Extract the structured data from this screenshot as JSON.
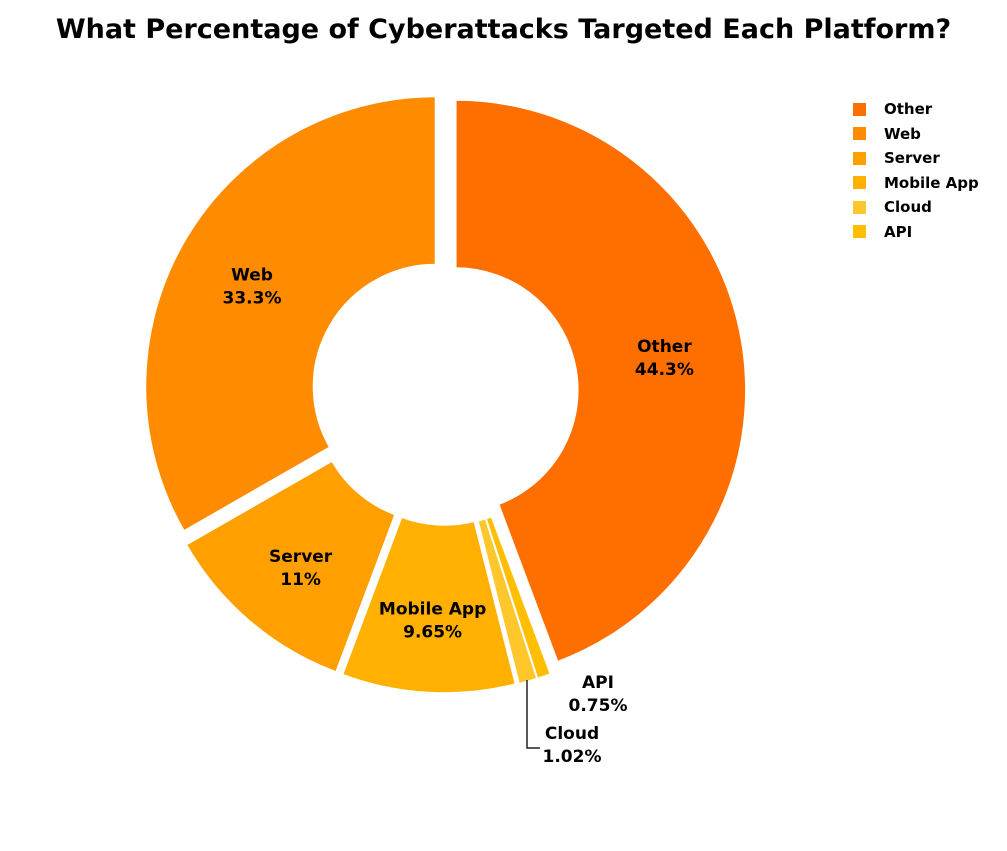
{
  "chart_data": {
    "type": "pie",
    "title": "What Percentage of Cyberattacks Targeted Each Platform?",
    "donut": true,
    "legend_position": "top-right",
    "slices": [
      {
        "label": "Other",
        "value": 44.3,
        "value_label": "44.3%",
        "color": "#FF6F00"
      },
      {
        "label": "API",
        "value": 0.75,
        "value_label": "0.75%",
        "color": "#FFBF00"
      },
      {
        "label": "Cloud",
        "value": 1.02,
        "value_label": "1.02%",
        "color": "#FFC72C"
      },
      {
        "label": "Mobile App",
        "value": 9.65,
        "value_label": "9.65%",
        "color": "#FFB000"
      },
      {
        "label": "Server",
        "value": 11,
        "value_label": "11%",
        "color": "#FFA000"
      },
      {
        "label": "Web",
        "value": 33.3,
        "value_label": "33.3%",
        "color": "#FF8C00"
      }
    ],
    "legend_order": [
      "Other",
      "Web",
      "Server",
      "Mobile App",
      "Cloud",
      "API"
    ]
  }
}
